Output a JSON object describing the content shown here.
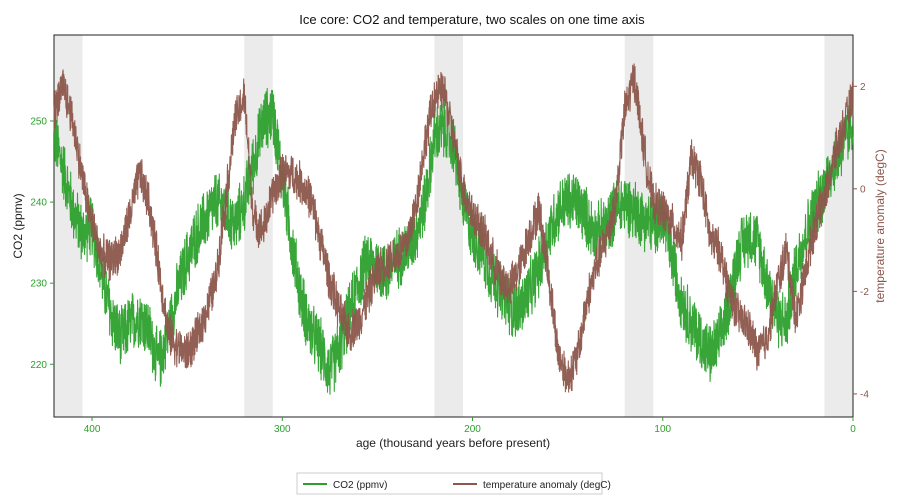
{
  "chart_data": {
    "type": "line",
    "title": "Ice core: CO2 and temperature, two scales on one time axis",
    "xlabel": "age (thousand years before present)",
    "ylabel_left": "CO2 (ppmv)",
    "ylabel_right": "temperature anomaly (degC)",
    "x_reversed": true,
    "xlim": [
      420,
      0
    ],
    "ylim_left": [
      213.5,
      260.6
    ],
    "ylim_right": [
      -4.45,
      3.0
    ],
    "xticks": [
      400,
      300,
      200,
      100,
      0
    ],
    "yticks_left": [
      220,
      230,
      240,
      250
    ],
    "yticks_right": [
      -4,
      -2,
      0,
      2
    ],
    "interglacial_bands": [
      [
        420,
        405
      ],
      [
        320,
        305
      ],
      [
        220,
        205
      ],
      [
        120,
        105
      ],
      [
        15,
        0
      ]
    ],
    "legend_position": "bottom-center",
    "colors": {
      "co2": "#2ca02c",
      "temperature": "#8c564b",
      "band": "#ebebeb"
    },
    "series": [
      {
        "name": "CO2 (ppmv)",
        "axis": "left",
        "x": [
          420,
          415,
          410,
          405,
          400,
          395,
          390,
          385,
          380,
          375,
          370,
          365,
          360,
          355,
          350,
          345,
          340,
          335,
          330,
          325,
          320,
          315,
          310,
          305,
          300,
          295,
          290,
          285,
          280,
          275,
          270,
          265,
          260,
          255,
          250,
          245,
          240,
          235,
          230,
          225,
          220,
          215,
          210,
          205,
          200,
          195,
          190,
          185,
          180,
          175,
          170,
          165,
          160,
          155,
          150,
          145,
          140,
          135,
          130,
          125,
          120,
          115,
          110,
          105,
          100,
          95,
          90,
          85,
          80,
          75,
          70,
          65,
          60,
          55,
          50,
          45,
          40,
          35,
          30,
          25,
          20,
          15,
          10,
          5,
          0
        ],
        "values": [
          248,
          244,
          239,
          236,
          237,
          231,
          226,
          223,
          225,
          226,
          224,
          220,
          224,
          229,
          233,
          236,
          238,
          240,
          239,
          237,
          240,
          245,
          250,
          251,
          243,
          235,
          228,
          224,
          222,
          219,
          222,
          226,
          230,
          233,
          232,
          231,
          233,
          234,
          236,
          240,
          248,
          249,
          247,
          240,
          236,
          234,
          231,
          229,
          227,
          227,
          229,
          232,
          236,
          239,
          240,
          240,
          238,
          236,
          237,
          239,
          240,
          239,
          238,
          237,
          238,
          233,
          228,
          225,
          223,
          221,
          223,
          228,
          234,
          236,
          235,
          230,
          226,
          225,
          232,
          236,
          239,
          242,
          245,
          247,
          250
        ]
      },
      {
        "name": "temperature anomaly (degC)",
        "axis": "right",
        "x": [
          420,
          415,
          410,
          405,
          400,
          395,
          390,
          385,
          380,
          375,
          370,
          365,
          360,
          355,
          350,
          345,
          340,
          335,
          330,
          325,
          320,
          315,
          310,
          305,
          300,
          295,
          290,
          285,
          280,
          275,
          270,
          265,
          260,
          255,
          250,
          245,
          240,
          235,
          230,
          225,
          220,
          215,
          210,
          205,
          200,
          195,
          190,
          185,
          180,
          175,
          170,
          165,
          160,
          155,
          150,
          145,
          140,
          135,
          130,
          125,
          120,
          115,
          110,
          105,
          100,
          95,
          90,
          85,
          80,
          75,
          70,
          65,
          60,
          55,
          50,
          45,
          40,
          35,
          30,
          25,
          20,
          15,
          10,
          5,
          0
        ],
        "values": [
          1.5,
          2.0,
          1.3,
          0.2,
          -0.7,
          -1.3,
          -1.4,
          -1.2,
          -0.5,
          0.3,
          -0.3,
          -1.5,
          -2.8,
          -3.1,
          -3.2,
          -2.9,
          -2.4,
          -1.8,
          -0.3,
          1.3,
          1.8,
          -0.6,
          -0.8,
          -0.1,
          0.3,
          0.3,
          0.1,
          -0.2,
          -1.0,
          -1.8,
          -2.4,
          -2.8,
          -2.6,
          -2.1,
          -1.6,
          -1.4,
          -1.3,
          -1.1,
          -0.4,
          0.9,
          1.8,
          1.9,
          1.0,
          0.0,
          -0.5,
          -0.8,
          -1.3,
          -1.8,
          -1.9,
          -1.5,
          -0.9,
          -0.4,
          -1.7,
          -3.2,
          -3.7,
          -3.3,
          -2.2,
          -1.5,
          -1.0,
          -0.3,
          1.5,
          2.2,
          0.8,
          -0.3,
          -0.4,
          -0.7,
          -1.0,
          0.6,
          0.2,
          -1.0,
          -1.2,
          -2.0,
          -2.5,
          -2.7,
          -3.2,
          -2.9,
          -1.9,
          -1.2,
          -2.5,
          -1.6,
          -0.7,
          -0.2,
          0.6,
          1.2,
          1.8
        ]
      }
    ]
  }
}
